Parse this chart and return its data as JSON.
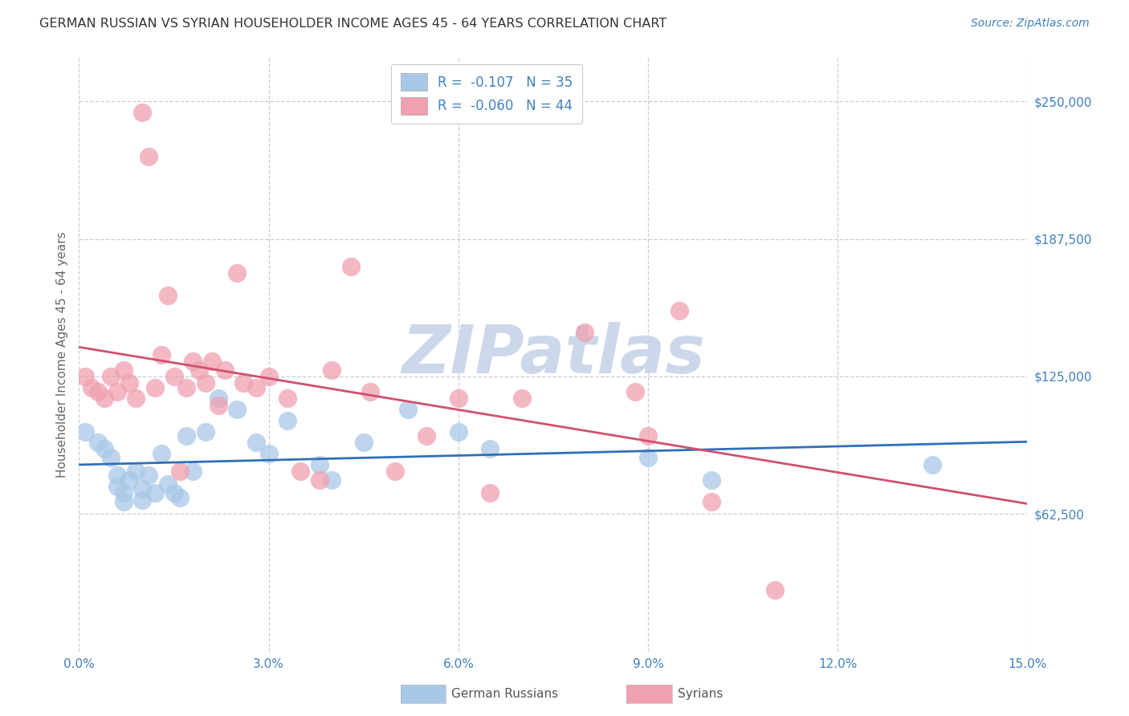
{
  "title": "GERMAN RUSSIAN VS SYRIAN HOUSEHOLDER INCOME AGES 45 - 64 YEARS CORRELATION CHART",
  "source": "Source: ZipAtlas.com",
  "ylabel": "Householder Income Ages 45 - 64 years",
  "xlim": [
    0.0,
    0.15
  ],
  "ylim": [
    0,
    270000
  ],
  "ytick_positions": [
    62500,
    125000,
    187500,
    250000
  ],
  "ytick_labels": [
    "$62,500",
    "$125,000",
    "$187,500",
    "$250,000"
  ],
  "xtick_positions": [
    0.0,
    0.03,
    0.06,
    0.09,
    0.12,
    0.15
  ],
  "xtick_labels": [
    "0.0%",
    "3.0%",
    "6.0%",
    "9.0%",
    "12.0%",
    "15.0%"
  ],
  "legend_blue": "R =  -0.107   N = 35",
  "legend_pink": "R =  -0.060   N = 44",
  "legend_label_blue": "German Russians",
  "legend_label_pink": "Syrians",
  "watermark": "ZIPatlas",
  "blue_dot_color": "#a8c8e8",
  "pink_dot_color": "#f0a0b0",
  "line_blue_color": "#3070b8",
  "line_pink_color": "#d05070",
  "tick_color": "#4080c0",
  "title_color": "#333333",
  "source_color": "#4080c0",
  "grid_color": "#c0c8d8",
  "watermark_color": "#ccd8ea",
  "blue_x": [
    0.001,
    0.003,
    0.004,
    0.005,
    0.006,
    0.006,
    0.007,
    0.007,
    0.008,
    0.009,
    0.01,
    0.01,
    0.011,
    0.012,
    0.013,
    0.014,
    0.015,
    0.016,
    0.017,
    0.018,
    0.02,
    0.022,
    0.025,
    0.028,
    0.03,
    0.033,
    0.038,
    0.04,
    0.045,
    0.052,
    0.06,
    0.065,
    0.09,
    0.1,
    0.135
  ],
  "blue_y": [
    100000,
    95000,
    92000,
    88000,
    80000,
    75000,
    72000,
    68000,
    78000,
    82000,
    74000,
    69000,
    80000,
    72000,
    90000,
    76000,
    72000,
    70000,
    98000,
    82000,
    100000,
    115000,
    110000,
    95000,
    90000,
    105000,
    85000,
    78000,
    95000,
    110000,
    100000,
    92000,
    88000,
    78000,
    85000
  ],
  "pink_x": [
    0.001,
    0.002,
    0.003,
    0.004,
    0.005,
    0.006,
    0.007,
    0.008,
    0.009,
    0.01,
    0.011,
    0.012,
    0.013,
    0.014,
    0.015,
    0.016,
    0.017,
    0.018,
    0.019,
    0.02,
    0.021,
    0.022,
    0.023,
    0.025,
    0.026,
    0.028,
    0.03,
    0.033,
    0.035,
    0.038,
    0.04,
    0.043,
    0.046,
    0.05,
    0.055,
    0.06,
    0.065,
    0.07,
    0.08,
    0.088,
    0.09,
    0.095,
    0.1,
    0.11
  ],
  "pink_y": [
    125000,
    120000,
    118000,
    115000,
    125000,
    118000,
    128000,
    122000,
    115000,
    245000,
    225000,
    120000,
    135000,
    162000,
    125000,
    82000,
    120000,
    132000,
    128000,
    122000,
    132000,
    112000,
    128000,
    172000,
    122000,
    120000,
    125000,
    115000,
    82000,
    78000,
    128000,
    175000,
    118000,
    82000,
    98000,
    115000,
    72000,
    115000,
    145000,
    118000,
    98000,
    155000,
    68000,
    28000
  ]
}
